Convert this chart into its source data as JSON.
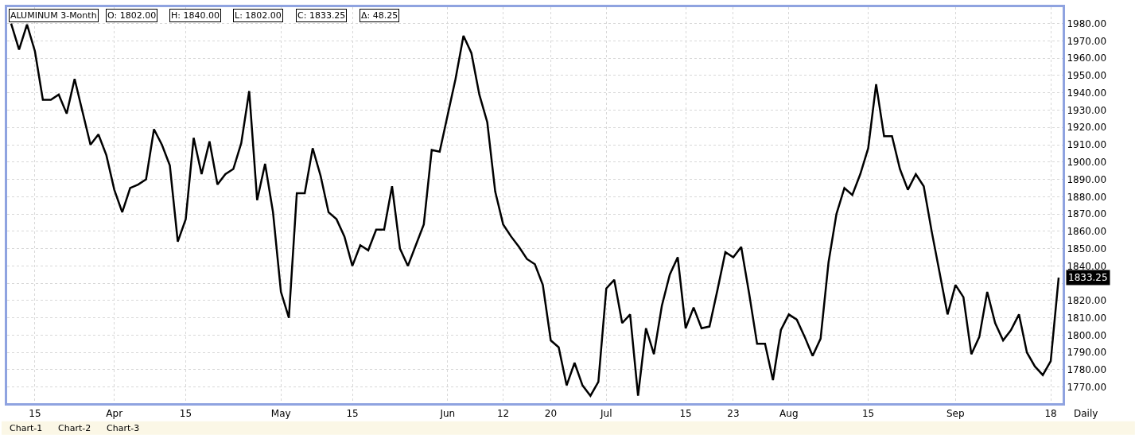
{
  "chart_data": {
    "type": "line",
    "title": "ALUMINUM 3-Month",
    "annotations": [
      "O: 1802.00",
      "H: 1840.00",
      "L: 1802.00",
      "C: 1833.25",
      "Δ: 48.25",
      "Daily",
      "Chart-1",
      "Chart-2",
      "Chart-3"
    ],
    "categories": [
      null,
      null,
      null,
      "15",
      null,
      null,
      null,
      null,
      null,
      null,
      null,
      null,
      null,
      "Apr",
      null,
      null,
      null,
      null,
      null,
      null,
      null,
      null,
      "15",
      null,
      null,
      null,
      null,
      null,
      null,
      null,
      null,
      null,
      null,
      null,
      "May",
      null,
      null,
      null,
      null,
      null,
      null,
      null,
      null,
      "15",
      null,
      null,
      null,
      null,
      null,
      null,
      null,
      null,
      null,
      null,
      null,
      "Jun",
      null,
      null,
      null,
      null,
      null,
      null,
      "12",
      null,
      null,
      null,
      null,
      null,
      "20",
      null,
      null,
      null,
      null,
      null,
      null,
      "Jul",
      null,
      null,
      null,
      null,
      null,
      null,
      null,
      null,
      null,
      "15",
      null,
      null,
      null,
      null,
      null,
      "23",
      null,
      null,
      null,
      null,
      null,
      null,
      "Aug",
      null,
      null,
      null,
      null,
      null,
      null,
      null,
      null,
      null,
      "15",
      null,
      null,
      null,
      null,
      null,
      null,
      null,
      null,
      null,
      null,
      "Sep",
      null,
      null,
      null,
      null,
      null,
      null,
      null,
      null,
      null,
      null,
      null,
      "18",
      null
    ],
    "series": [
      {
        "color": "#000000",
        "values": [
          1980,
          1965,
          1979.5,
          1964,
          1936,
          1936,
          1939,
          1928,
          1948,
          1929,
          1910,
          1916,
          1904,
          1884,
          1871,
          1885,
          1887,
          1890,
          1919,
          1910,
          1898,
          1854,
          1867,
          1914,
          1893,
          1912,
          1887,
          1893,
          1896,
          1911,
          1941,
          1878,
          1899,
          1871,
          1825,
          1810,
          1882,
          1882,
          1908,
          1892,
          1871,
          1867,
          1857,
          1840,
          1852,
          1849,
          1861,
          1861,
          1886,
          1850,
          1840,
          1852,
          1864,
          1907,
          1906,
          1927,
          1948,
          1973,
          1963,
          1939,
          1923,
          1883,
          1864,
          1857,
          1851,
          1844,
          1841,
          1829,
          1797,
          1793,
          1771,
          1784,
          1771,
          1765,
          1773,
          1827,
          1832,
          1807,
          1812,
          1765,
          1804,
          1789,
          1817,
          1835,
          1845,
          1804,
          1816,
          1804,
          1805,
          1826,
          1848,
          1845,
          1851,
          1824,
          1795,
          1795,
          1774,
          1803,
          1812,
          1809,
          1799,
          1788,
          1798,
          1842,
          1870,
          1885,
          1881,
          1893,
          1908,
          1945,
          1915,
          1915,
          1896,
          1884,
          1893,
          1886,
          1860,
          1836,
          1812,
          1829,
          1822,
          1789,
          1799,
          1825,
          1807,
          1797,
          1803,
          1812,
          1790,
          1782,
          1777,
          1785,
          1833.25
        ],
        "value_labels": [
          null,
          null,
          null,
          null,
          null,
          null,
          null,
          null,
          null,
          null,
          null,
          null,
          null,
          null,
          null,
          null,
          null,
          null,
          null,
          null,
          null,
          null,
          null,
          null,
          null,
          null,
          null,
          null,
          null,
          null,
          null,
          null,
          null,
          null,
          null,
          null,
          null,
          null,
          null,
          null,
          null,
          null,
          null,
          null,
          null,
          null,
          null,
          null,
          null,
          null,
          null,
          null,
          null,
          null,
          null,
          null,
          null,
          null,
          null,
          null,
          null,
          null,
          null,
          null,
          null,
          null,
          null,
          null,
          null,
          null,
          null,
          null,
          null,
          null,
          null,
          null,
          null,
          null,
          null,
          null,
          null,
          null,
          null,
          null,
          null,
          null,
          null,
          null,
          null,
          null,
          null,
          null,
          null,
          null,
          null,
          null,
          null,
          null,
          null,
          null,
          null,
          null,
          null,
          null,
          null,
          null,
          null,
          null,
          null,
          null,
          null,
          null,
          null,
          null,
          null,
          null,
          null,
          null,
          null,
          null,
          null,
          null,
          null,
          null,
          null,
          null,
          null,
          null,
          null,
          null,
          null,
          null,
          "1833.25"
        ]
      }
    ],
    "ylim": [
      1760.7,
      1989.5
    ],
    "yticks": [
      {
        "value": 1770,
        "label": "1770.00"
      },
      {
        "value": 1780,
        "label": "1780.00"
      },
      {
        "value": 1790,
        "label": "1790.00"
      },
      {
        "value": 1800,
        "label": "1800.00"
      },
      {
        "value": 1810,
        "label": "1810.00"
      },
      {
        "value": 1820,
        "label": "1820.00"
      },
      {
        "value": 1830,
        "label": null
      },
      {
        "value": 1840,
        "label": "1840.00"
      },
      {
        "value": 1850,
        "label": "1850.00"
      },
      {
        "value": 1860,
        "label": "1860.00"
      },
      {
        "value": 1870,
        "label": "1870.00"
      },
      {
        "value": 1880,
        "label": "1880.00"
      },
      {
        "value": 1890,
        "label": "1890.00"
      },
      {
        "value": 1900,
        "label": "1900.00"
      },
      {
        "value": 1910,
        "label": "1910.00"
      },
      {
        "value": 1920,
        "label": "1920.00"
      },
      {
        "value": 1930,
        "label": "1930.00"
      },
      {
        "value": 1940,
        "label": "1940.00"
      },
      {
        "value": 1950,
        "label": "1950.00"
      },
      {
        "value": 1960,
        "label": "1960.00"
      },
      {
        "value": 1970,
        "label": "1970.00"
      },
      {
        "value": 1980,
        "label": "1980.00"
      }
    ],
    "grid": true,
    "marker": "none",
    "line_style": "solid"
  }
}
